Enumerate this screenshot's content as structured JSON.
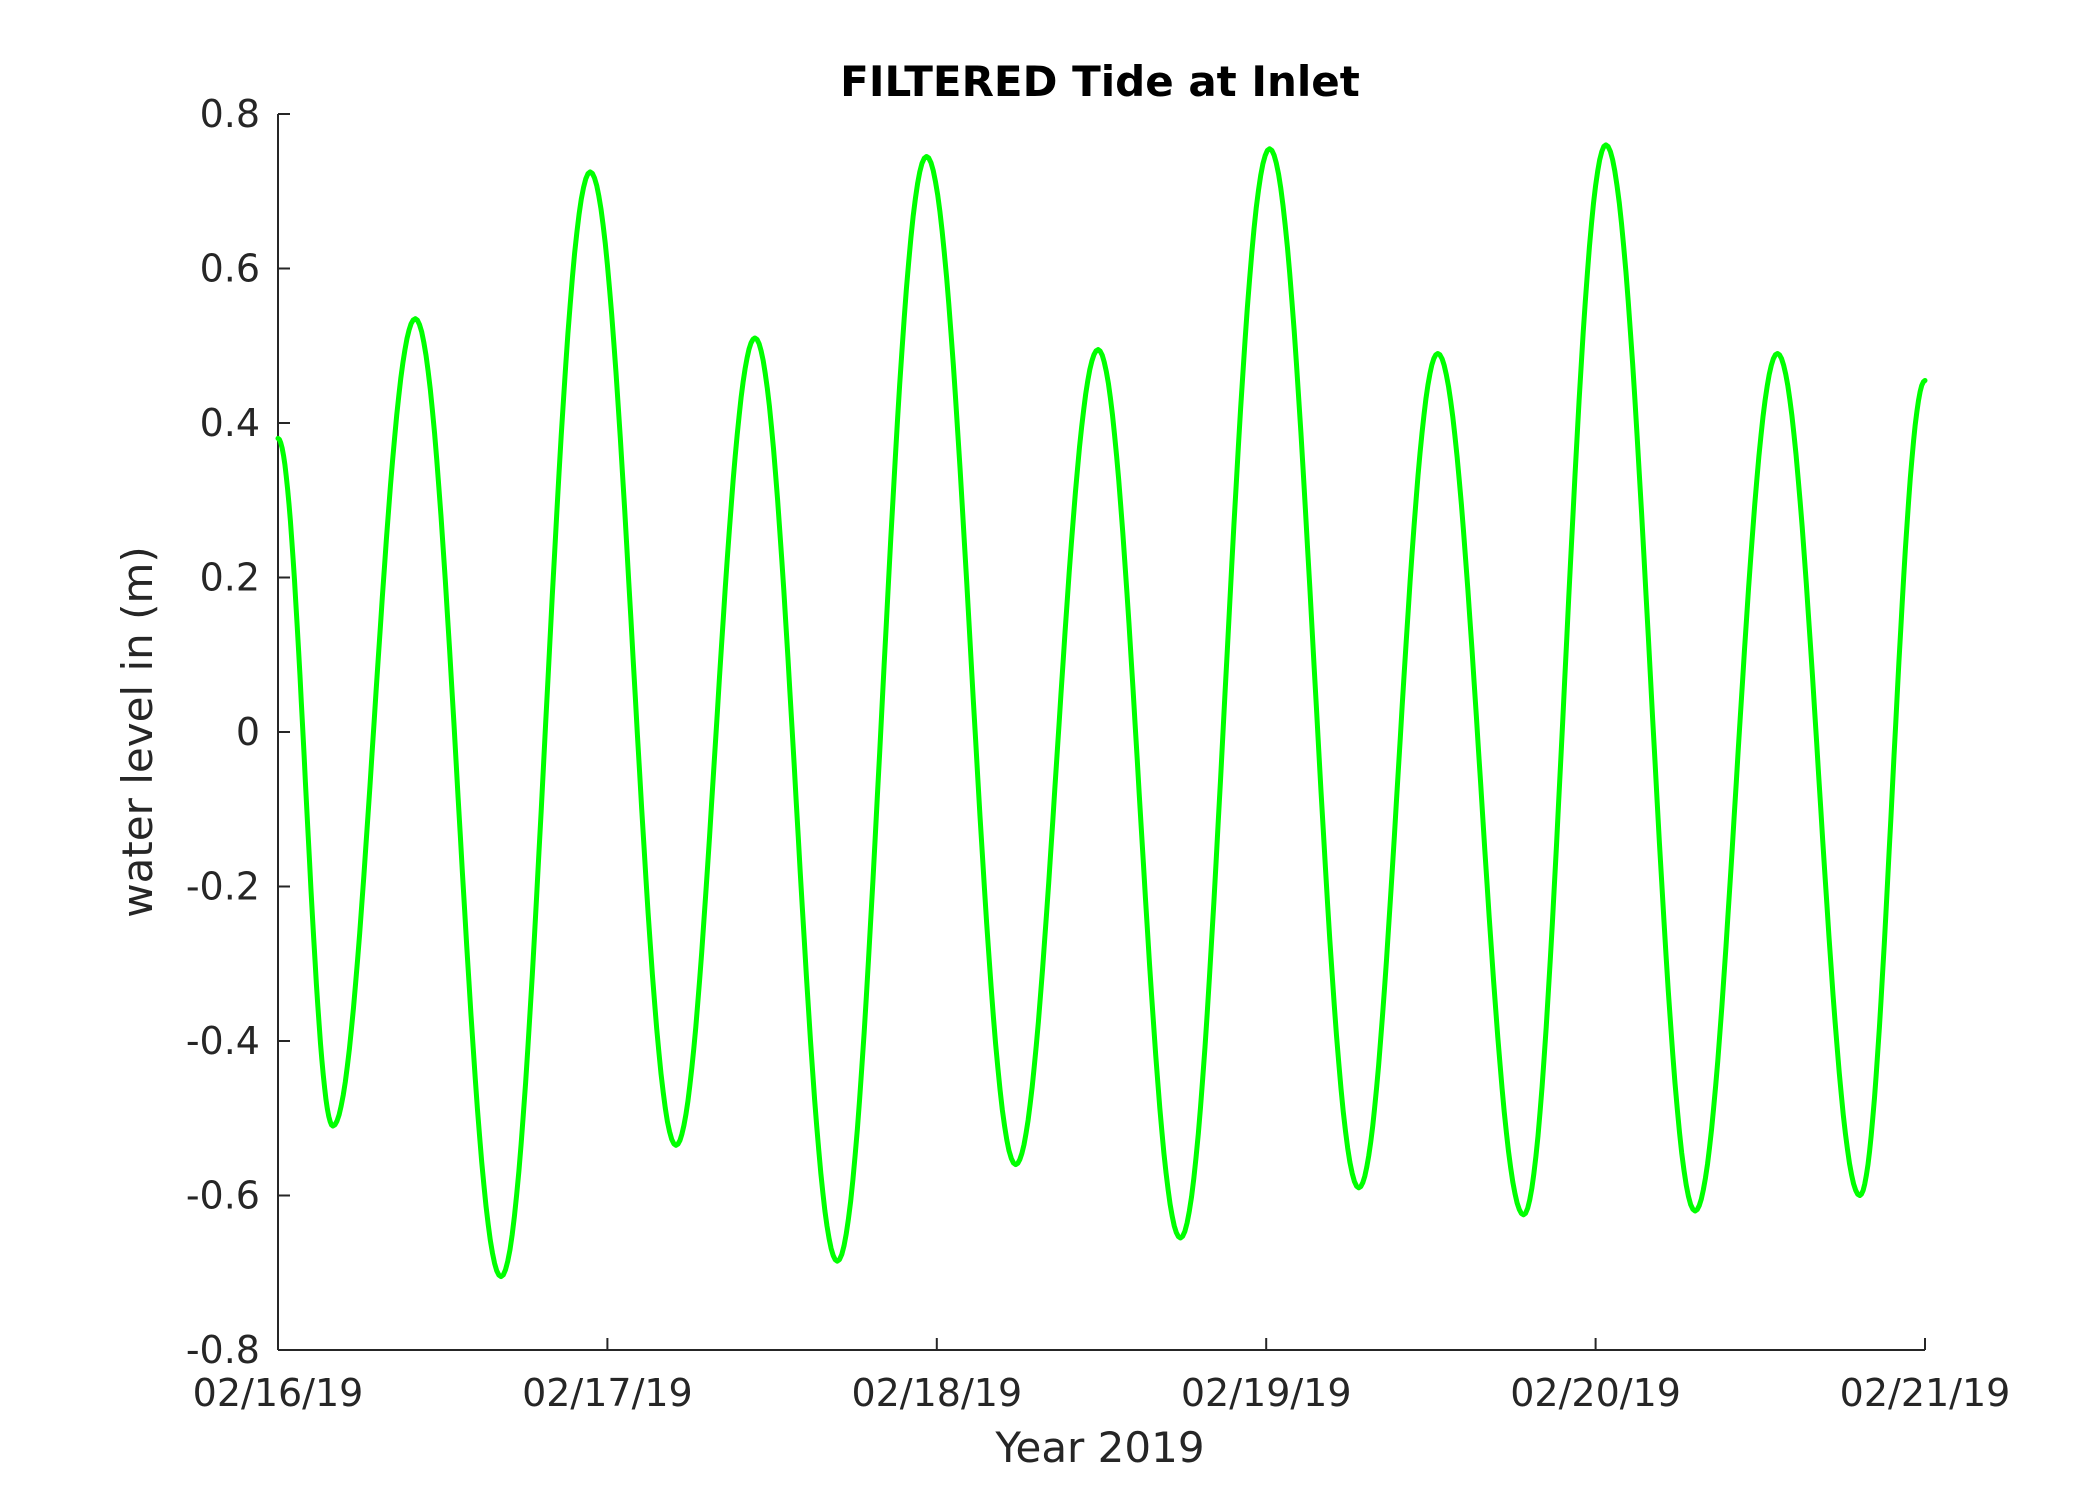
{
  "chart_data": {
    "type": "line",
    "title": "FILTERED Tide at Inlet",
    "xlabel": "Year 2019",
    "ylabel": "water level in (m)",
    "xlim": [
      "2019-02-16T00:00",
      "2019-02-21T00:00"
    ],
    "ylim": [
      -0.8,
      0.8
    ],
    "grid": false,
    "legend": "none",
    "xticks": [
      {
        "t": "2019-02-16T00:00",
        "label": "02/16/19"
      },
      {
        "t": "2019-02-17T00:00",
        "label": "02/17/19"
      },
      {
        "t": "2019-02-18T00:00",
        "label": "02/18/19"
      },
      {
        "t": "2019-02-19T00:00",
        "label": "02/19/19"
      },
      {
        "t": "2019-02-20T00:00",
        "label": "02/20/19"
      },
      {
        "t": "2019-02-21T00:00",
        "label": "02/21/19"
      }
    ],
    "yticks": [
      {
        "v": 0.8,
        "label": "0.8"
      },
      {
        "v": 0.6,
        "label": "0.6"
      },
      {
        "v": 0.4,
        "label": "0.4"
      },
      {
        "v": 0.2,
        "label": "0.2"
      },
      {
        "v": 0,
        "label": "0"
      },
      {
        "v": -0.2,
        "label": "-0.2"
      },
      {
        "v": -0.4,
        "label": "-0.4"
      },
      {
        "v": -0.6,
        "label": "-0.6"
      },
      {
        "v": -0.8,
        "label": "-0.8"
      }
    ],
    "series": [
      {
        "color": "#00ff00",
        "points": [
          {
            "t": "2019-02-16T00:00",
            "y": 0.38
          },
          {
            "t": "2019-02-16T04:00",
            "y": -0.51
          },
          {
            "t": "2019-02-16T10:00",
            "y": 0.535
          },
          {
            "t": "2019-02-16T16:15",
            "y": -0.705
          },
          {
            "t": "2019-02-16T22:45",
            "y": 0.725
          },
          {
            "t": "2019-02-17T05:00",
            "y": -0.535
          },
          {
            "t": "2019-02-17T10:45",
            "y": 0.51
          },
          {
            "t": "2019-02-17T16:45",
            "y": -0.685
          },
          {
            "t": "2019-02-17T23:15",
            "y": 0.745
          },
          {
            "t": "2019-02-18T05:45",
            "y": -0.56
          },
          {
            "t": "2019-02-18T11:45",
            "y": 0.495
          },
          {
            "t": "2019-02-18T17:45",
            "y": -0.655
          },
          {
            "t": "2019-02-19T00:15",
            "y": 0.755
          },
          {
            "t": "2019-02-19T06:45",
            "y": -0.59
          },
          {
            "t": "2019-02-19T12:30",
            "y": 0.49
          },
          {
            "t": "2019-02-19T18:45",
            "y": -0.625
          },
          {
            "t": "2019-02-20T00:45",
            "y": 0.76
          },
          {
            "t": "2019-02-20T07:15",
            "y": -0.62
          },
          {
            "t": "2019-02-20T13:15",
            "y": 0.49
          },
          {
            "t": "2019-02-20T19:15",
            "y": -0.6
          },
          {
            "t": "2019-02-21T00:00",
            "y": 0.455
          }
        ]
      }
    ]
  }
}
